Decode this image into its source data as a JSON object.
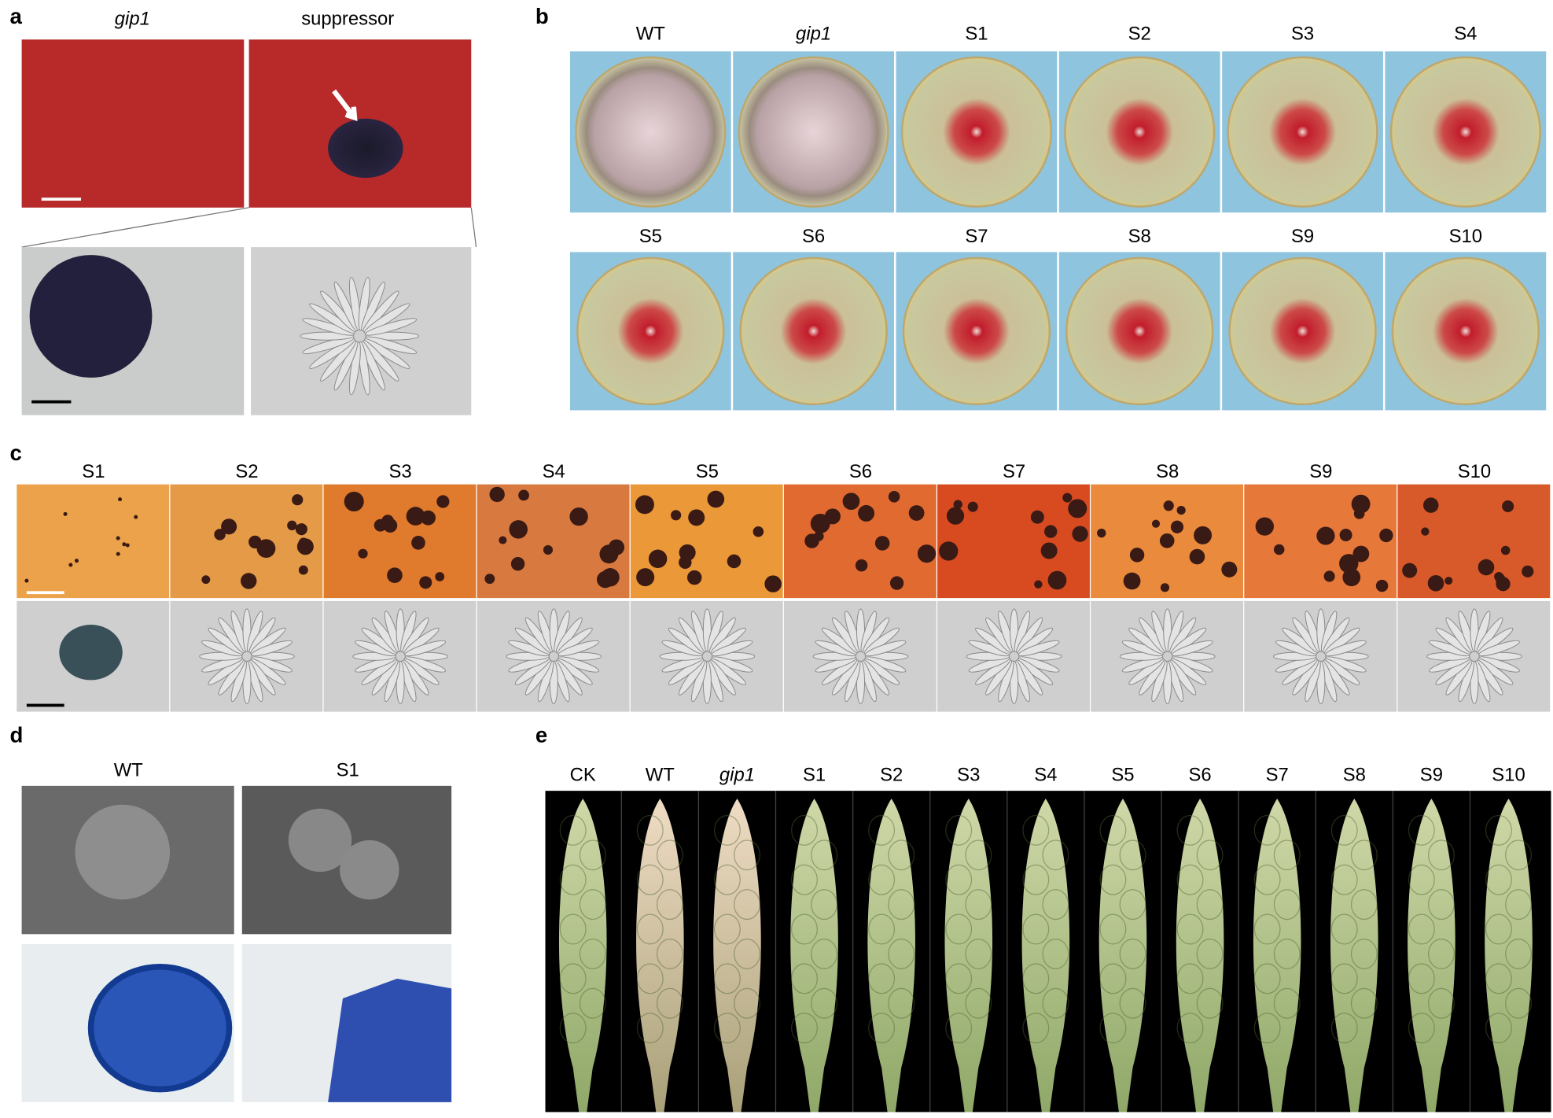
{
  "panels": [
    {
      "letter": "a",
      "labels": [
        "gip1",
        "suppressor"
      ],
      "italic": [
        0
      ]
    },
    {
      "letter": "b",
      "labels": [
        "WT",
        "gip1",
        "S1",
        "S2",
        "S3",
        "S4",
        "S5",
        "S6",
        "S7",
        "S8",
        "S9",
        "S10"
      ],
      "italic": [
        1
      ]
    },
    {
      "letter": "c",
      "labels": [
        "S1",
        "S2",
        "S3",
        "S4",
        "S5",
        "S6",
        "S7",
        "S8",
        "S9",
        "S10"
      ],
      "italic": []
    },
    {
      "letter": "d",
      "labels": [
        "WT",
        "S1"
      ],
      "italic": []
    },
    {
      "letter": "e",
      "labels": [
        "CK",
        "WT",
        "gip1",
        "S1",
        "S2",
        "S3",
        "S4",
        "S5",
        "S6",
        "S7",
        "S8",
        "S9",
        "S10"
      ],
      "italic": [
        2
      ]
    }
  ]
}
